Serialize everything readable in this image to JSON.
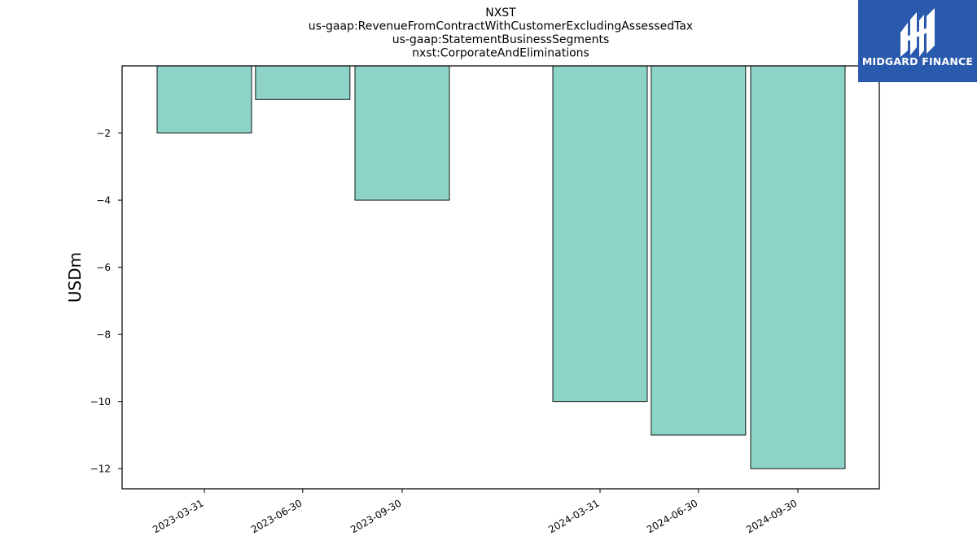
{
  "chart_data": {
    "type": "bar",
    "title_lines": [
      "NXST",
      "us-gaap:RevenueFromContractWithCustomerExcludingAssessedTax",
      "us-gaap:StatementBusinessSegments",
      "nxst:CorporateAndEliminations"
    ],
    "xlabel": "",
    "ylabel": "USDm",
    "categories": [
      "2023-03-31",
      "2023-06-30",
      "2023-09-30",
      "2024-03-31",
      "2024-06-30",
      "2024-09-30"
    ],
    "values": [
      -2,
      -1,
      -4,
      -10,
      -11,
      -12
    ],
    "ylim": [
      -12.6,
      0
    ],
    "yticks": [
      -2,
      -4,
      -6,
      -8,
      -10,
      -12
    ],
    "ytick_labels": [
      "−2",
      "−4",
      "−6",
      "−8",
      "−10",
      "−12"
    ],
    "bar_color": "#8dd3c7",
    "edge_color": "#000000",
    "grid": false,
    "legend": "none"
  },
  "logo": {
    "text": "MIDGARD FINANCE",
    "background": "#2a5aad"
  }
}
